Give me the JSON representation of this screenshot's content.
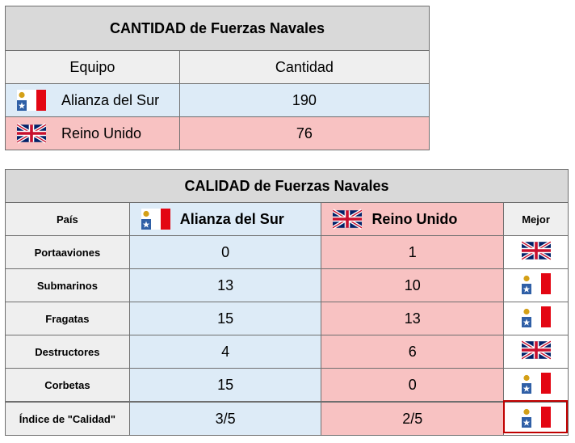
{
  "quantity_table": {
    "title": "CANTIDAD de Fuerzas Navales",
    "headers": [
      "Equipo",
      "Cantidad"
    ],
    "rows": [
      {
        "team": "Alianza del Sur",
        "flag": "alliance-flag-icon",
        "value": "190"
      },
      {
        "team": "Reino Unido",
        "flag": "uk-flag-icon",
        "value": "76"
      }
    ]
  },
  "quality_table": {
    "title": "CALIDAD de Fuerzas Navales",
    "headers": {
      "country": "País",
      "team_a": "Alianza del Sur",
      "team_b": "Reino Unido",
      "best": "Mejor"
    },
    "rows": [
      {
        "label": "Portaaviones",
        "a": "0",
        "b": "1",
        "best": "uk-flag-icon"
      },
      {
        "label": "Submarinos",
        "a": "13",
        "b": "10",
        "best": "alliance-flag-icon"
      },
      {
        "label": "Fragatas",
        "a": "15",
        "b": "13",
        "best": "alliance-flag-icon"
      },
      {
        "label": "Destructores",
        "a": "4",
        "b": "6",
        "best": "uk-flag-icon"
      },
      {
        "label": "Corbetas",
        "a": "15",
        "b": "0",
        "best": "alliance-flag-icon"
      },
      {
        "label": "Índice de \"Calidad\"",
        "a": "3/5",
        "b": "2/5",
        "best": "alliance-flag-icon"
      }
    ]
  },
  "colors": {
    "alliance_bg": "#ddebf7",
    "uk_bg": "#f8c2c2",
    "title_bg": "#d9d9d9",
    "highlight_border": "#c00000"
  }
}
